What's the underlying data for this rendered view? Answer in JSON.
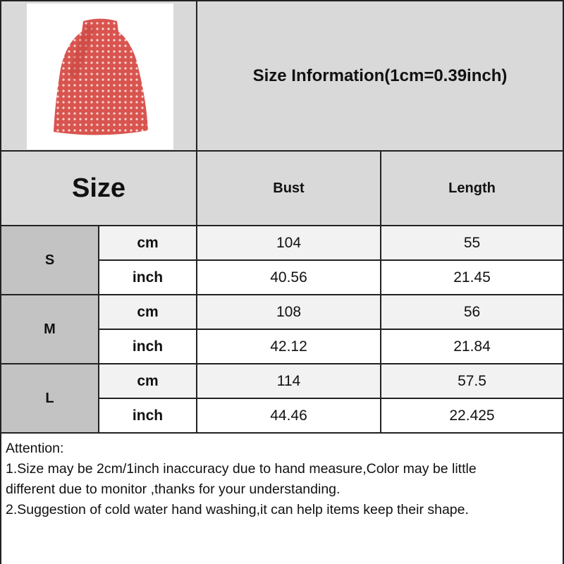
{
  "title": "Size Information(1cm=0.39inch)",
  "header": {
    "size": "Size",
    "columns": [
      "Bust",
      "Length"
    ]
  },
  "product_image": {
    "description_icon": "red-polka-dot-halter-top",
    "color": "#d9534f"
  },
  "rows": [
    {
      "size": "S",
      "cm": {
        "unit": "cm",
        "bust": "104",
        "length": "55"
      },
      "inch": {
        "unit": "inch",
        "bust": "40.56",
        "length": "21.45"
      }
    },
    {
      "size": "M",
      "cm": {
        "unit": "cm",
        "bust": "108",
        "length": "56"
      },
      "inch": {
        "unit": "inch",
        "bust": "42.12",
        "length": "21.84"
      }
    },
    {
      "size": "L",
      "cm": {
        "unit": "cm",
        "bust": "114",
        "length": "57.5"
      },
      "inch": {
        "unit": "inch",
        "bust": "44.46",
        "length": "22.425"
      }
    }
  ],
  "attention": {
    "heading": "Attention:",
    "lines": [
      "1.Size may be 2cm/1inch inaccuracy due to hand measure,Color may be little",
      "different due to monitor ,thanks for your understanding.",
      "2.Suggestion of cold water hand washing,it can help items keep their shape."
    ]
  }
}
